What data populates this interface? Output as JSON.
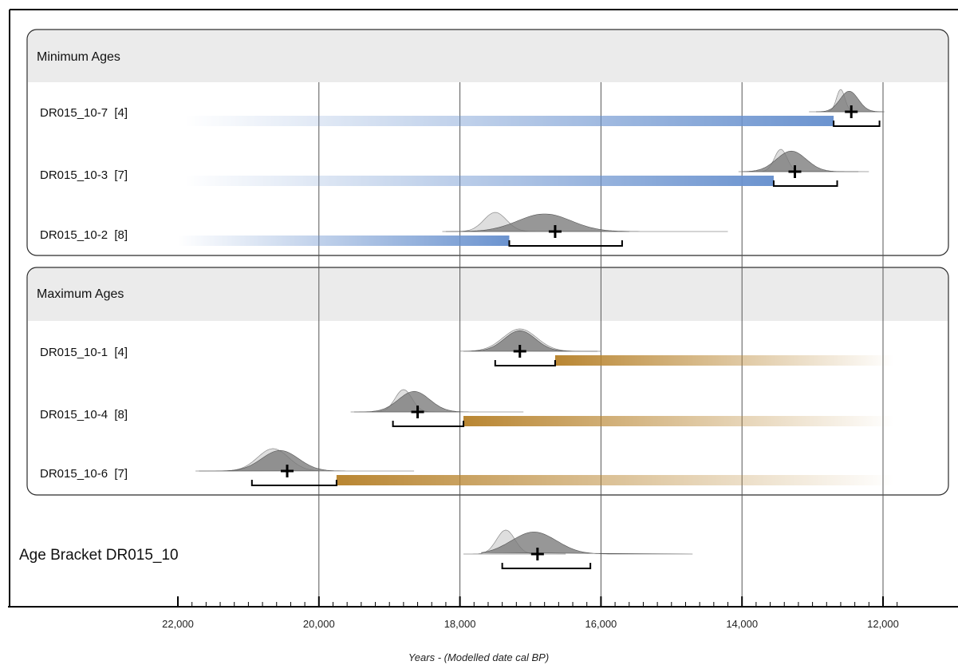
{
  "chart_data": {
    "type": "density",
    "xlabel": "Years - (Modelled date cal BP)",
    "x_reversed": true,
    "xlim": [
      22000,
      11800
    ],
    "x_ticks": [
      22000,
      20000,
      18000,
      16000,
      14000,
      12000
    ],
    "x_tick_labels": [
      "22,000",
      "20,000",
      "18,000",
      "16,000",
      "14,000",
      "12,000"
    ],
    "grid": "vertical",
    "colors": {
      "min_bar": "#6b93cf",
      "max_bar": "#b98632",
      "posterior": "#7a7a7a",
      "likelihood": "#dadada",
      "panel_header": "#ebebeb"
    },
    "groups": [
      {
        "title": "Minimum Ages",
        "bar_direction": "older",
        "samples": [
          {
            "label": "DR015_10-7  [4]",
            "prior_mean": 12600,
            "prior_sd": 60,
            "post_mean": 12480,
            "post_sd": 130,
            "prior_range": [
              13050,
              12000
            ],
            "post_range": [
              12950,
              11980
            ],
            "median": 12450,
            "range_95": [
              12700,
              12050
            ],
            "bar_from": 12700,
            "bar_to": 21900
          },
          {
            "label": "DR015_10-3  [7]",
            "prior_mean": 13450,
            "prior_sd": 90,
            "post_mean": 13300,
            "post_sd": 210,
            "prior_range": [
              14050,
              12350
            ],
            "post_range": [
              14000,
              12200
            ],
            "median": 13250,
            "range_95": [
              13550,
              12650
            ],
            "bar_from": 13550,
            "bar_to": 21900
          },
          {
            "label": "DR015_10-2  [8]",
            "prior_mean": 17500,
            "prior_sd": 160,
            "post_mean": 16800,
            "post_sd": 380,
            "prior_range": [
              18250,
              15600
            ],
            "post_range": [
              18200,
              14200
            ],
            "median": 16650,
            "range_95": [
              17300,
              15700
            ],
            "bar_from": 17300,
            "bar_to": 22000
          }
        ]
      },
      {
        "title": "Maximum Ages",
        "bar_direction": "younger",
        "samples": [
          {
            "label": "DR015_10-1  [4]",
            "prior_mean": 17150,
            "prior_sd": 240,
            "post_mean": 17150,
            "post_sd": 220,
            "prior_range": [
              18000,
              16000
            ],
            "post_range": [
              17950,
              16050
            ],
            "median": 17150,
            "range_95": [
              17500,
              16650
            ],
            "bar_from": 16650,
            "bar_to": 11850
          },
          {
            "label": "DR015_10-4  [8]",
            "prior_mean": 18800,
            "prior_sd": 120,
            "post_mean": 18650,
            "post_sd": 220,
            "prior_range": [
              19500,
              18000
            ],
            "post_range": [
              19550,
              17100
            ],
            "median": 18600,
            "range_95": [
              18950,
              17950
            ],
            "bar_from": 17950,
            "bar_to": 11850
          },
          {
            "label": "DR015_10-6  [7]",
            "prior_mean": 20650,
            "prior_sd": 220,
            "post_mean": 20550,
            "post_sd": 260,
            "prior_range": [
              21700,
              20000
            ],
            "post_range": [
              21750,
              18650
            ],
            "median": 20450,
            "range_95": [
              20950,
              19750
            ],
            "bar_from": 19750,
            "bar_to": 11850
          }
        ]
      }
    ],
    "bracket": {
      "label": "Age Bracket DR015_10",
      "prior_mean": 17350,
      "prior_sd": 130,
      "post_mean": 16950,
      "post_sd": 320,
      "prior_range": [
        17950,
        16500
      ],
      "post_range": [
        17700,
        14700
      ],
      "median": 16900,
      "range_95": [
        17400,
        16150
      ]
    }
  }
}
